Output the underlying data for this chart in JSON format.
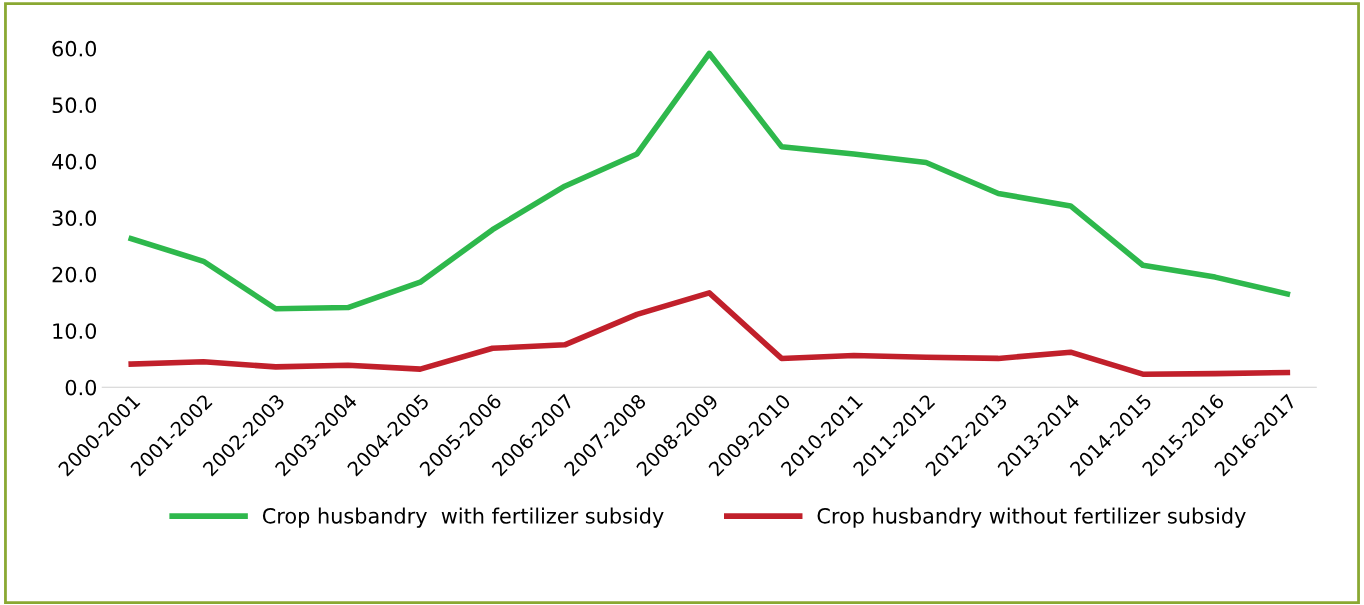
{
  "chart_data": {
    "type": "line",
    "categories": [
      "2000-2001",
      "2001-2002",
      "2002-2003",
      "2003-2004",
      "2004-2005",
      "2005-2006",
      "2006-2007",
      "2007-2008",
      "2008-2009",
      "2009-2010",
      "2010-2011",
      "2011-2012",
      "2012-2013",
      "2013-2014",
      "2014-2015",
      "2015-2016",
      "2016-2017"
    ],
    "series": [
      {
        "name": "Crop husbandry  with fertilizer subsidy",
        "color": "#2eb84c",
        "values": [
          26.3,
          22.3,
          13.9,
          14.1,
          18.6,
          27.9,
          35.6,
          41.3,
          59.1,
          42.6,
          41.3,
          39.8,
          34.3,
          32.1,
          21.6,
          19.5,
          16.5
        ]
      },
      {
        "name": "Crop husbandry without fertilizer subsidy",
        "color": "#c1202b",
        "values": [
          4.1,
          4.5,
          3.6,
          3.9,
          3.2,
          6.9,
          7.5,
          12.9,
          16.7,
          5.1,
          5.6,
          5.3,
          5.1,
          6.2,
          2.3,
          2.4,
          2.6
        ]
      }
    ],
    "ylim": [
      0,
      60
    ],
    "yticks": [
      {
        "value": 0,
        "label": "0.0"
      },
      {
        "value": 10,
        "label": "10.0"
      },
      {
        "value": 20,
        "label": "20.0"
      },
      {
        "value": 30,
        "label": "30.0"
      },
      {
        "value": 40,
        "label": "40.0"
      },
      {
        "value": 50,
        "label": "50.0"
      },
      {
        "value": 60,
        "label": "60.0"
      }
    ],
    "grid": false,
    "legend": "bottom",
    "marker": "none",
    "line_style": "solid"
  }
}
